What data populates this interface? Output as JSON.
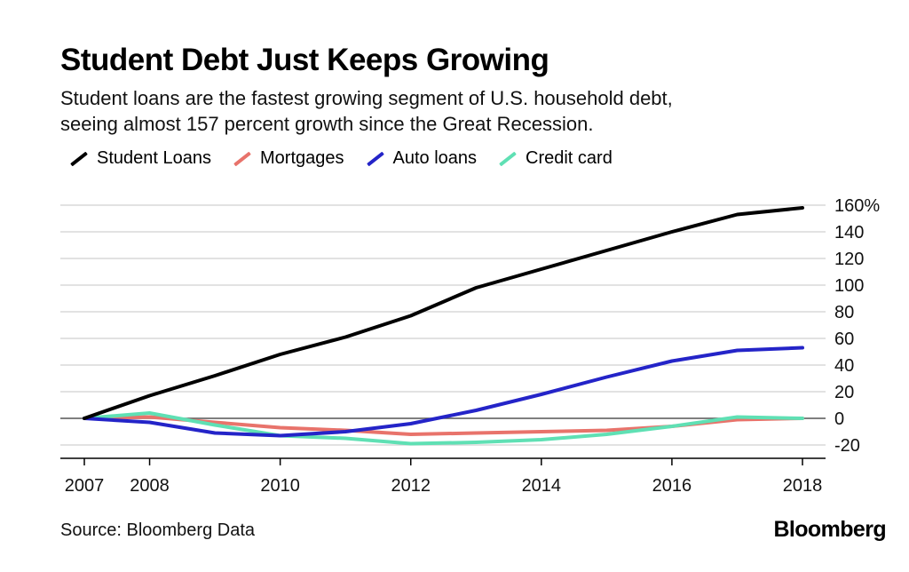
{
  "title": "Student Debt Just Keeps Growing",
  "subtitle_line1": "Student loans are the fastest growing segment of U.S. household debt,",
  "subtitle_line2": "seeing almost 157 percent growth since the Great Recession.",
  "source": "Source: Bloomberg Data",
  "brand": "Bloomberg",
  "colors": {
    "student_loans": "#000000",
    "mortgages": "#e8736b",
    "auto_loans": "#2424c8",
    "credit_card": "#5fe0b4",
    "grid": "#d0d0d0",
    "axis": "#000000"
  },
  "chart_data": {
    "type": "line",
    "title": "Student Debt Just Keeps Growing",
    "xlabel": "",
    "ylabel": "",
    "x": [
      2007,
      2008,
      2009,
      2010,
      2011,
      2012,
      2013,
      2014,
      2015,
      2016,
      2017,
      2018
    ],
    "xticks": [
      "2007",
      "2008",
      "2010",
      "2012",
      "2014",
      "2016",
      "2018"
    ],
    "xtick_values": [
      2007,
      2008,
      2010,
      2012,
      2014,
      2016,
      2018
    ],
    "yticks": [
      "160%",
      "140",
      "120",
      "100",
      "80",
      "60",
      "40",
      "20",
      "0",
      "-20"
    ],
    "ytick_values": [
      160,
      140,
      120,
      100,
      80,
      60,
      40,
      20,
      0,
      -20
    ],
    "xlim": [
      2007,
      2018
    ],
    "ylim": [
      -30,
      165
    ],
    "grid": true,
    "legend_position": "top-left",
    "series": [
      {
        "name": "Student Loans",
        "color_key": "student_loans",
        "values": [
          0,
          17,
          32,
          48,
          61,
          77,
          98,
          112,
          126,
          140,
          153,
          158
        ]
      },
      {
        "name": "Mortgages",
        "color_key": "mortgages",
        "values": [
          0,
          1,
          -3,
          -7,
          -9,
          -12,
          -11,
          -10,
          -9,
          -6,
          -1,
          0
        ]
      },
      {
        "name": "Auto loans",
        "color_key": "auto_loans",
        "values": [
          0,
          -3,
          -11,
          -13,
          -10,
          -4,
          6,
          18,
          31,
          43,
          51,
          53
        ]
      },
      {
        "name": "Credit card",
        "color_key": "credit_card",
        "values": [
          0,
          4,
          -5,
          -13,
          -15,
          -19,
          -18,
          -16,
          -12,
          -6,
          1,
          0
        ]
      }
    ]
  }
}
